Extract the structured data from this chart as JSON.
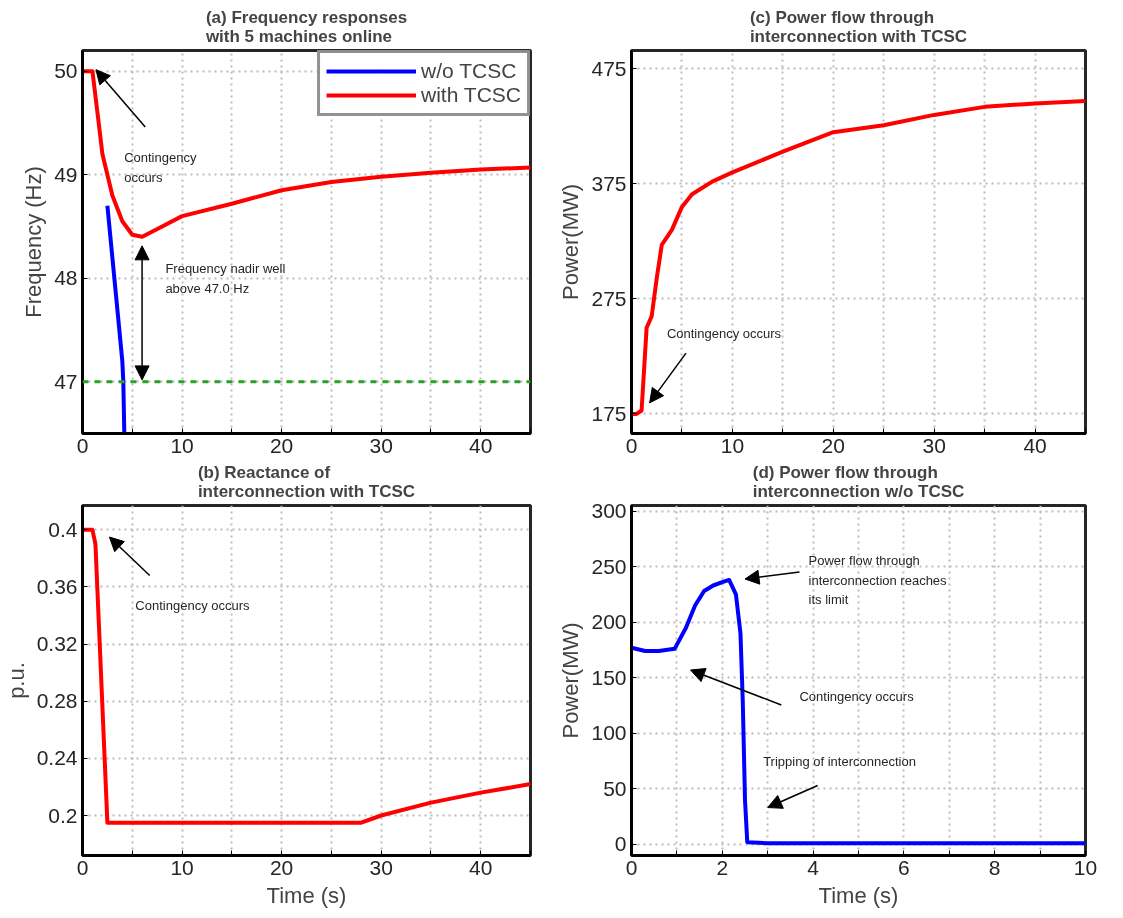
{
  "chart_data": [
    {
      "type": "line",
      "title": "(a) Frequency responses\nwith 5 machines online",
      "ylabel": "Frequency (Hz)",
      "xlim": [
        0,
        45
      ],
      "ylim": [
        46.5,
        50.2
      ],
      "xticks": [
        0,
        {
          "value": 5,
          "label": null
        },
        10,
        {
          "value": 15,
          "label": null
        },
        20,
        {
          "value": 25,
          "label": null
        },
        30,
        {
          "value": 35,
          "label": null
        },
        40,
        {
          "value": 45,
          "label": null
        }
      ],
      "yticks": [
        47,
        48,
        49,
        50
      ],
      "grid": true,
      "legend": "top right",
      "line_style": "solid",
      "marker": "none",
      "series": [
        {
          "name": "w/o TCSC",
          "color": "#0000ff",
          "x": [
            2.5,
            3,
            3.5,
            4,
            4.1,
            4.2
          ],
          "values": [
            48.7,
            48.2,
            47.7,
            47.2,
            47,
            46.5
          ]
        },
        {
          "name": "with TCSC",
          "color": "#ff0000",
          "x": [
            0,
            1,
            1.5,
            2,
            3,
            4,
            5,
            6,
            8,
            10,
            15,
            20,
            25,
            30,
            35,
            40,
            45
          ],
          "values": [
            50,
            50,
            49.6,
            49.2,
            48.8,
            48.55,
            48.42,
            48.4,
            48.5,
            48.6,
            48.72,
            48.85,
            48.93,
            48.98,
            49.02,
            49.05,
            49.07
          ]
        }
      ],
      "ref_lines": [
        {
          "axis": "y",
          "value": 47,
          "color": "#2ca02c",
          "line_style": "dashed"
        }
      ],
      "annotations": [
        "Contingency\noccurs",
        "Frequency nadir well\nabove 47.0 Hz"
      ]
    },
    {
      "type": "line",
      "title": "(c) Power flow through\ninterconnection with TCSC",
      "ylabel": "Power(MW)",
      "xlim": [
        0,
        45
      ],
      "ylim": [
        158,
        491
      ],
      "xticks": [
        0,
        {
          "value": 5,
          "label": null
        },
        10,
        {
          "value": 15,
          "label": null
        },
        20,
        {
          "value": 25,
          "label": null
        },
        30,
        {
          "value": 35,
          "label": null
        },
        40,
        {
          "value": 45,
          "label": null
        }
      ],
      "yticks": [
        175,
        275,
        375,
        475
      ],
      "grid": true,
      "line_style": "solid",
      "marker": "none",
      "series": [
        {
          "color": "#ff0000",
          "x": [
            0,
            0.5,
            1,
            1.5,
            2,
            2.5,
            3,
            4,
            5,
            6,
            8,
            10,
            15,
            20,
            25,
            30,
            35,
            40,
            45
          ],
          "values": [
            175,
            175,
            178,
            250,
            260,
            293,
            322,
            335,
            355,
            366,
            377,
            385,
            403,
            420,
            426,
            435,
            442,
            445,
            447
          ]
        }
      ],
      "annotations": [
        "Contingency occurs"
      ]
    },
    {
      "type": "line",
      "title": "(b) Reactance of\ninterconnection with TCSC",
      "ylabel": "p.u.",
      "xlabel": "Time (s)",
      "xlim": [
        0,
        45
      ],
      "ylim": [
        0.172,
        0.417
      ],
      "xticks": [
        0,
        {
          "value": 5,
          "label": null
        },
        10,
        {
          "value": 15,
          "label": null
        },
        20,
        {
          "value": 25,
          "label": null
        },
        30,
        {
          "value": 35,
          "label": null
        },
        40,
        {
          "value": 45,
          "label": null
        }
      ],
      "yticks": [
        0.2,
        0.24,
        0.28,
        0.32,
        0.36,
        0.4
      ],
      "grid": true,
      "line_style": "solid",
      "marker": "none",
      "series": [
        {
          "color": "#ff0000",
          "x": [
            0,
            1,
            1.3,
            2.5,
            28,
            30,
            35,
            40,
            45
          ],
          "values": [
            0.4,
            0.4,
            0.39,
            0.195,
            0.195,
            0.2,
            0.209,
            0.216,
            0.222
          ]
        }
      ],
      "annotations": [
        "Contingency occurs"
      ]
    },
    {
      "type": "line",
      "title": "(d) Power flow through\ninterconnection w/o TCSC",
      "ylabel": "Power(MW)",
      "xlabel": "Time (s)",
      "xlim": [
        0,
        10
      ],
      "ylim": [
        -10,
        305
      ],
      "xticks": [
        0,
        {
          "value": 1,
          "label": null
        },
        2,
        {
          "value": 3,
          "label": null
        },
        4,
        {
          "value": 5,
          "label": null
        },
        6,
        {
          "value": 7,
          "label": null
        },
        8,
        {
          "value": 9,
          "label": null
        },
        10
      ],
      "yticks": [
        0,
        50,
        100,
        150,
        200,
        250,
        300
      ],
      "grid": true,
      "line_style": "solid",
      "marker": "none",
      "series": [
        {
          "color": "#0000ff",
          "x": [
            0,
            0.3,
            0.6,
            0.95,
            1.2,
            1.4,
            1.6,
            1.8,
            2,
            2.15,
            2.3,
            2.4,
            2.45,
            2.5,
            2.55,
            3,
            10
          ],
          "values": [
            177,
            174,
            174,
            176,
            195,
            215,
            228,
            233,
            236,
            238,
            225,
            190,
            130,
            40,
            2,
            1,
            1
          ]
        }
      ],
      "annotations": [
        "Power flow through\ninterconnection reaches\nits limit",
        "Contingency occurs",
        "Tripping of interconnection"
      ]
    }
  ]
}
